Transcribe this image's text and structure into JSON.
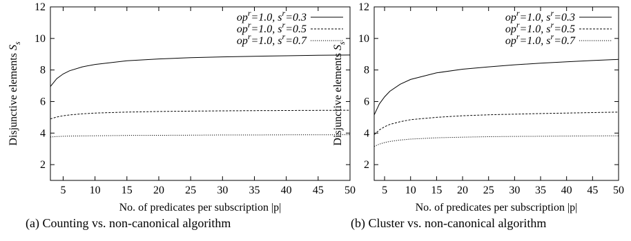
{
  "chart_data": [
    {
      "type": "line",
      "title": "",
      "caption": "(a) Counting vs. non-canonical algorithm",
      "xlabel": "No. of predicates per subscription |p|",
      "ylabel": "Disjunctive elements S_s",
      "xlim": [
        3,
        50
      ],
      "ylim": [
        1,
        12
      ],
      "xticks": [
        5,
        10,
        15,
        20,
        25,
        30,
        35,
        40,
        45,
        50
      ],
      "yticks": [
        2,
        4,
        6,
        8,
        10,
        12
      ],
      "grid": false,
      "legend_position": "top-right",
      "series": [
        {
          "name": "op^r=1.0, s^r=0.3",
          "style": "solid",
          "x": [
            3,
            4,
            5,
            6,
            8,
            10,
            15,
            20,
            25,
            30,
            35,
            40,
            45,
            50
          ],
          "y": [
            6.95,
            7.45,
            7.75,
            7.95,
            8.2,
            8.35,
            8.58,
            8.7,
            8.78,
            8.83,
            8.87,
            8.9,
            8.93,
            8.95
          ]
        },
        {
          "name": "op^r=1.0, s^r=0.5",
          "style": "dashed",
          "x": [
            3,
            4,
            5,
            6,
            8,
            10,
            15,
            20,
            25,
            30,
            35,
            40,
            45,
            50
          ],
          "y": [
            4.9,
            5.02,
            5.1,
            5.15,
            5.22,
            5.27,
            5.33,
            5.37,
            5.39,
            5.41,
            5.42,
            5.43,
            5.44,
            5.45
          ]
        },
        {
          "name": "op^r=1.0, s^r=0.7",
          "style": "dotted",
          "x": [
            3,
            4,
            5,
            6,
            8,
            10,
            15,
            20,
            25,
            30,
            35,
            40,
            45,
            50
          ],
          "y": [
            3.75,
            3.78,
            3.8,
            3.81,
            3.82,
            3.83,
            3.85,
            3.86,
            3.87,
            3.88,
            3.88,
            3.89,
            3.89,
            3.9
          ]
        }
      ]
    },
    {
      "type": "line",
      "title": "",
      "caption": "(b) Cluster vs. non-canonical algorithm",
      "xlabel": "No. of predicates per subscription |p|",
      "ylabel": "Disjunctive elements S_s",
      "xlim": [
        3,
        50
      ],
      "ylim": [
        1,
        12
      ],
      "xticks": [
        5,
        10,
        15,
        20,
        25,
        30,
        35,
        40,
        45,
        50
      ],
      "yticks": [
        2,
        4,
        6,
        8,
        10,
        12
      ],
      "grid": false,
      "legend_position": "top-right",
      "series": [
        {
          "name": "op^r=1.0, s^r=0.3",
          "style": "solid",
          "x": [
            3,
            4,
            5,
            6,
            8,
            10,
            15,
            20,
            25,
            30,
            35,
            40,
            45,
            50
          ],
          "y": [
            5.15,
            5.85,
            6.3,
            6.65,
            7.1,
            7.4,
            7.82,
            8.05,
            8.2,
            8.33,
            8.43,
            8.52,
            8.6,
            8.67
          ]
        },
        {
          "name": "op^r=1.0, s^r=0.5",
          "style": "dashed",
          "x": [
            3,
            4,
            5,
            6,
            8,
            10,
            15,
            20,
            25,
            30,
            35,
            40,
            45,
            50
          ],
          "y": [
            3.9,
            4.2,
            4.4,
            4.55,
            4.72,
            4.85,
            5.0,
            5.1,
            5.16,
            5.2,
            5.24,
            5.27,
            5.3,
            5.33
          ]
        },
        {
          "name": "op^r=1.0, s^r=0.7",
          "style": "dotted",
          "x": [
            3,
            4,
            5,
            6,
            8,
            10,
            15,
            20,
            25,
            30,
            35,
            40,
            45,
            50
          ],
          "y": [
            3.15,
            3.3,
            3.4,
            3.47,
            3.56,
            3.62,
            3.7,
            3.74,
            3.77,
            3.79,
            3.8,
            3.81,
            3.82,
            3.83
          ]
        }
      ]
    }
  ]
}
